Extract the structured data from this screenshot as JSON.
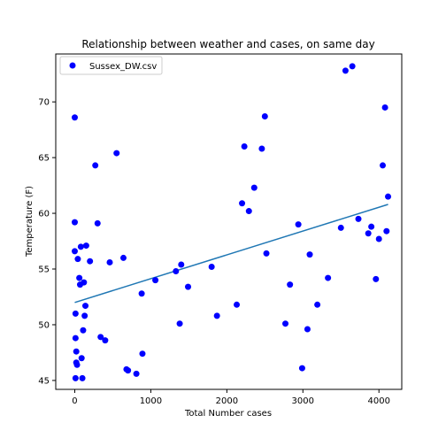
{
  "chart_data": {
    "type": "scatter",
    "title": "Relationship between weather and cases, on same day",
    "xlabel": "Total Number cases",
    "ylabel": "Temperature (F)",
    "xlim": [
      -250,
      4300
    ],
    "ylim": [
      44.2,
      74.3
    ],
    "xticks": [
      0,
      1000,
      2000,
      3000,
      4000
    ],
    "yticks": [
      45,
      50,
      55,
      60,
      65,
      70
    ],
    "grid": false,
    "legend_position": "upper-left",
    "colors": {
      "points": "#0000ff",
      "trend": "#1f77b4"
    },
    "series": [
      {
        "name": "Sussex_DW.csv",
        "kind": "scatter",
        "points": [
          [
            0,
            68.6
          ],
          [
            0,
            59.2
          ],
          [
            0,
            56.6
          ],
          [
            10,
            51.0
          ],
          [
            10,
            48.8
          ],
          [
            20,
            47.6
          ],
          [
            20,
            46.6
          ],
          [
            30,
            46.4
          ],
          [
            10,
            45.2
          ],
          [
            40,
            55.9
          ],
          [
            60,
            54.2
          ],
          [
            70,
            53.6
          ],
          [
            80,
            57.0
          ],
          [
            90,
            47.0
          ],
          [
            100,
            45.2
          ],
          [
            110,
            49.5
          ],
          [
            120,
            53.8
          ],
          [
            130,
            50.8
          ],
          [
            140,
            51.7
          ],
          [
            150,
            57.1
          ],
          [
            200,
            55.7
          ],
          [
            270,
            64.3
          ],
          [
            300,
            59.1
          ],
          [
            340,
            48.9
          ],
          [
            400,
            48.6
          ],
          [
            460,
            55.6
          ],
          [
            550,
            65.4
          ],
          [
            640,
            56.0
          ],
          [
            680,
            46.0
          ],
          [
            700,
            45.9
          ],
          [
            810,
            45.6
          ],
          [
            880,
            52.8
          ],
          [
            890,
            47.4
          ],
          [
            1060,
            54.0
          ],
          [
            1330,
            54.8
          ],
          [
            1380,
            50.1
          ],
          [
            1400,
            55.4
          ],
          [
            1490,
            53.4
          ],
          [
            1800,
            55.2
          ],
          [
            1870,
            50.8
          ],
          [
            2130,
            51.8
          ],
          [
            2200,
            60.9
          ],
          [
            2230,
            66.0
          ],
          [
            2290,
            60.2
          ],
          [
            2360,
            62.3
          ],
          [
            2460,
            65.8
          ],
          [
            2500,
            68.7
          ],
          [
            2520,
            56.4
          ],
          [
            2770,
            50.1
          ],
          [
            2830,
            53.6
          ],
          [
            2940,
            59.0
          ],
          [
            2990,
            46.1
          ],
          [
            3060,
            49.6
          ],
          [
            3090,
            56.3
          ],
          [
            3190,
            51.8
          ],
          [
            3330,
            54.2
          ],
          [
            3500,
            58.7
          ],
          [
            3560,
            72.8
          ],
          [
            3650,
            73.2
          ],
          [
            3730,
            59.5
          ],
          [
            3860,
            58.2
          ],
          [
            3900,
            58.8
          ],
          [
            3960,
            54.1
          ],
          [
            4000,
            57.7
          ],
          [
            4050,
            64.3
          ],
          [
            4080,
            69.5
          ],
          [
            4100,
            58.4
          ],
          [
            4120,
            61.5
          ]
        ]
      },
      {
        "kind": "line",
        "points": [
          [
            0,
            52.0
          ],
          [
            4120,
            60.8
          ]
        ]
      }
    ]
  }
}
